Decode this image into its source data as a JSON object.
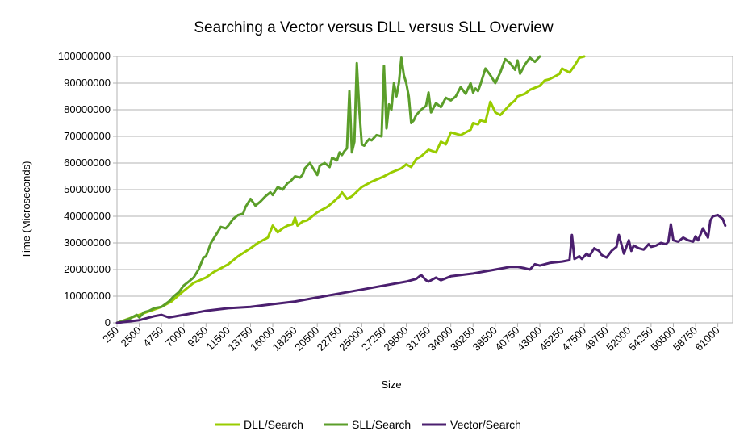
{
  "chart_data": {
    "type": "line",
    "title": "Searching a Vector versus DLL versus SLL Overview",
    "xlabel": "Size",
    "ylabel": "Time (Microseconds)",
    "ylim": [
      0,
      100000000
    ],
    "y_ticks": [
      "0",
      "10000000",
      "20000000",
      "30000000",
      "40000000",
      "50000000",
      "60000000",
      "70000000",
      "80000000",
      "90000000",
      "100000000"
    ],
    "x_ticks": [
      "250",
      "2500",
      "4750",
      "7000",
      "9250",
      "11500",
      "13750",
      "16000",
      "18250",
      "20500",
      "22750",
      "25000",
      "27250",
      "29500",
      "31750",
      "34000",
      "36250",
      "38500",
      "40750",
      "43000",
      "45250",
      "47500",
      "49750",
      "52000",
      "54250",
      "56500",
      "58750",
      "61000"
    ],
    "grid": "horizontal",
    "legend_position": "bottom",
    "series": [
      {
        "name": "DLL/Search",
        "color": "#99cc00",
        "x": [
          250,
          2500,
          4750,
          5750,
          7000,
          8000,
          9250,
          10000,
          11500,
          12500,
          13750,
          14500,
          15000,
          15500,
          16000,
          16500,
          17000,
          17500,
          18000,
          18250,
          18500,
          19000,
          19500,
          20500,
          21500,
          22000,
          22750,
          23000,
          23500,
          24000,
          25000,
          26000,
          27250,
          28000,
          29000,
          29500,
          30000,
          30500,
          31000,
          31750,
          32500,
          33000,
          33500,
          34000,
          35000,
          36000,
          36250,
          36750,
          37000,
          37500,
          38000,
          38500,
          39000,
          39500,
          40000,
          40500,
          40750,
          41500,
          42000,
          43000,
          43500,
          44000,
          44500,
          45000,
          45250,
          46000,
          46500,
          47000,
          47500
        ],
        "values": [
          0,
          3000000,
          6000000,
          8000000,
          12000000,
          15000000,
          17000000,
          19000000,
          22000000,
          25000000,
          28000000,
          30000000,
          31000000,
          32000000,
          36500000,
          34000000,
          35500000,
          36500000,
          37000000,
          39500000,
          36500000,
          38000000,
          38500000,
          41500000,
          43500000,
          45000000,
          47500000,
          49000000,
          46500000,
          47500000,
          51000000,
          53000000,
          55000000,
          56500000,
          58000000,
          59500000,
          58500000,
          61500000,
          62500000,
          65000000,
          64000000,
          68000000,
          67000000,
          71500000,
          70500000,
          72500000,
          75000000,
          74500000,
          76000000,
          75500000,
          83000000,
          79000000,
          78000000,
          80000000,
          82000000,
          83500000,
          85000000,
          86000000,
          87500000,
          89000000,
          91000000,
          91500000,
          92500000,
          93500000,
          95500000,
          94000000,
          96500000,
          99500000,
          100000000
        ]
      },
      {
        "name": "SLL/Search",
        "color": "#5b9e2a",
        "x": [
          250,
          1500,
          2250,
          2500,
          3000,
          3500,
          4000,
          4750,
          5500,
          6000,
          6500,
          7000,
          7500,
          8000,
          8500,
          9000,
          9250,
          9750,
          10250,
          10750,
          11250,
          11500,
          12000,
          12500,
          13000,
          13250,
          13750,
          14250,
          14750,
          15250,
          15750,
          16000,
          16500,
          17000,
          17500,
          17750,
          18000,
          18250,
          18750,
          19000,
          19250,
          19750,
          20250,
          20500,
          20750,
          21250,
          21750,
          22000,
          22500,
          22750,
          23000,
          23250,
          23500,
          23750,
          24000,
          24250,
          24500,
          24750,
          25000,
          25250,
          25500,
          25750,
          26000,
          26500,
          27000,
          27250,
          27500,
          27750,
          28000,
          28250,
          28500,
          28750,
          29000,
          29250,
          29500,
          29750,
          30000,
          30250,
          30500,
          31000,
          31500,
          31750,
          32000,
          32500,
          33000,
          33500,
          34000,
          34500,
          35000,
          35500,
          36000,
          36250,
          36500,
          36750,
          37000,
          37500,
          38000,
          38500,
          38750,
          39000,
          39500,
          40000,
          40500,
          40750,
          41000,
          41500,
          42000,
          42500,
          43000
        ],
        "values": [
          0,
          1500000,
          3000000,
          2000000,
          4000000,
          4500000,
          5500000,
          6000000,
          8000000,
          10000000,
          11500000,
          14000000,
          15500000,
          17000000,
          20000000,
          24500000,
          25000000,
          30000000,
          33000000,
          36000000,
          35500000,
          36500000,
          39000000,
          40500000,
          41000000,
          43500000,
          46500000,
          44000000,
          45500000,
          47500000,
          49000000,
          48000000,
          51000000,
          50000000,
          52500000,
          53000000,
          54000000,
          55000000,
          54500000,
          55500000,
          58000000,
          60000000,
          57000000,
          55500000,
          59000000,
          60000000,
          58500000,
          62000000,
          61000000,
          64000000,
          63000000,
          64500000,
          65500000,
          87000000,
          64000000,
          68000000,
          97500000,
          80000000,
          67000000,
          66500000,
          68000000,
          69000000,
          68500000,
          70500000,
          70000000,
          96500000,
          73000000,
          82000000,
          80000000,
          90000000,
          85000000,
          90000000,
          99500000,
          93000000,
          90000000,
          85000000,
          75000000,
          76000000,
          78000000,
          80000000,
          81500000,
          86500000,
          79000000,
          82500000,
          81000000,
          84500000,
          83500000,
          85000000,
          88500000,
          86000000,
          90000000,
          86500000,
          88000000,
          87000000,
          89500000,
          95500000,
          93000000,
          90000000,
          92000000,
          94000000,
          99000000,
          97500000,
          95000000,
          98500000,
          93500000,
          97000000,
          99500000,
          98000000,
          100000000
        ]
      },
      {
        "name": "Vector/Search",
        "color": "#4b1f6f",
        "x": [
          250,
          2500,
          4000,
          4750,
          5500,
          7000,
          8500,
          9250,
          11500,
          13750,
          16000,
          18250,
          20500,
          22750,
          25000,
          27250,
          29500,
          30500,
          31000,
          31500,
          31750,
          32500,
          33000,
          34000,
          36250,
          38500,
          40000,
          40750,
          41500,
          42000,
          42500,
          43000,
          44000,
          45250,
          46000,
          46250,
          46500,
          47000,
          47250,
          47750,
          48000,
          48500,
          49000,
          49250,
          49750,
          50250,
          50750,
          51000,
          51500,
          52000,
          52250,
          52500,
          53000,
          53500,
          54000,
          54250,
          54750,
          55250,
          55750,
          56000,
          56250,
          56500,
          57000,
          57500,
          58000,
          58500,
          58750,
          59000,
          59500,
          60000,
          60250,
          60500,
          61000,
          61500,
          61750
        ],
        "values": [
          0,
          1000000,
          2500000,
          3000000,
          2000000,
          3000000,
          4000000,
          4500000,
          5500000,
          6000000,
          7000000,
          8000000,
          9500000,
          11000000,
          12500000,
          14000000,
          15500000,
          16500000,
          18000000,
          16000000,
          15500000,
          17000000,
          16000000,
          17500000,
          18500000,
          20000000,
          21000000,
          21000000,
          20500000,
          20000000,
          22000000,
          21500000,
          22500000,
          23000000,
          23500000,
          33000000,
          24000000,
          25000000,
          24000000,
          26000000,
          25000000,
          28000000,
          27000000,
          25500000,
          24500000,
          27000000,
          28500000,
          33000000,
          26000000,
          31000000,
          27000000,
          29000000,
          28000000,
          27500000,
          29500000,
          28500000,
          29000000,
          30000000,
          29500000,
          30500000,
          37000000,
          31000000,
          30500000,
          32000000,
          31000000,
          30500000,
          32500000,
          31000000,
          35500000,
          32000000,
          38500000,
          40000000,
          40500000,
          39000000,
          36500000
        ]
      }
    ]
  }
}
